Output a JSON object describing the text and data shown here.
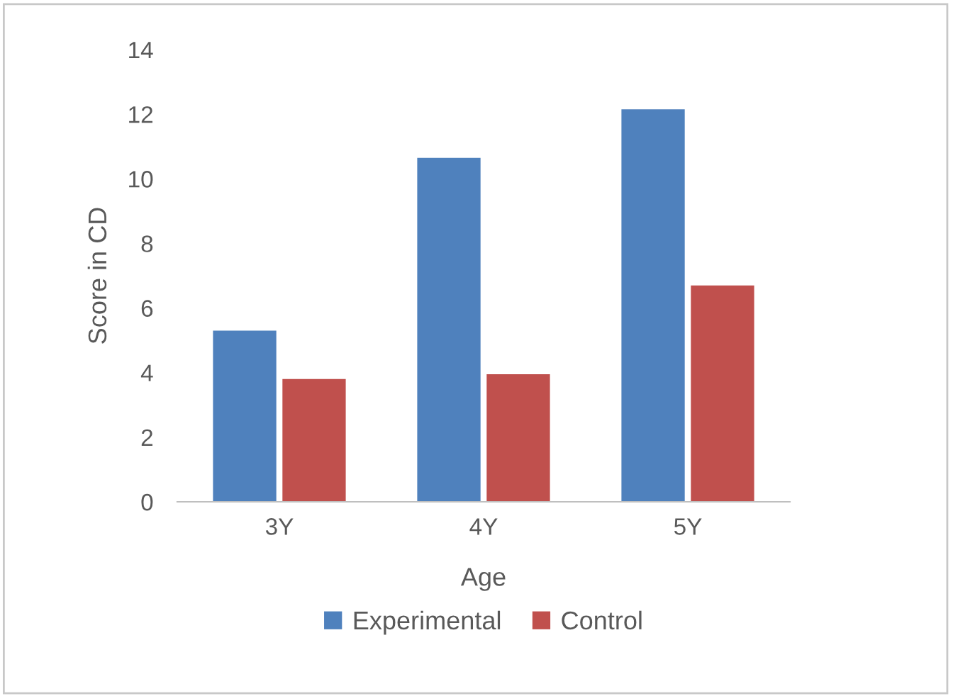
{
  "chart_data": {
    "type": "bar",
    "xlabel": "Age",
    "ylabel": "Score in CD",
    "categories": [
      "3Y",
      "4Y",
      "5Y"
    ],
    "series": [
      {
        "name": "Experimental",
        "color": "#4f81bd",
        "values": [
          5.3,
          10.65,
          12.15
        ]
      },
      {
        "name": "Control",
        "color": "#c0504d",
        "values": [
          3.8,
          3.95,
          6.7
        ]
      }
    ],
    "ylim": [
      0,
      14
    ],
    "yticks": [
      0,
      2,
      4,
      6,
      8,
      10,
      12,
      14
    ],
    "grid": false,
    "legend": "bottom"
  }
}
